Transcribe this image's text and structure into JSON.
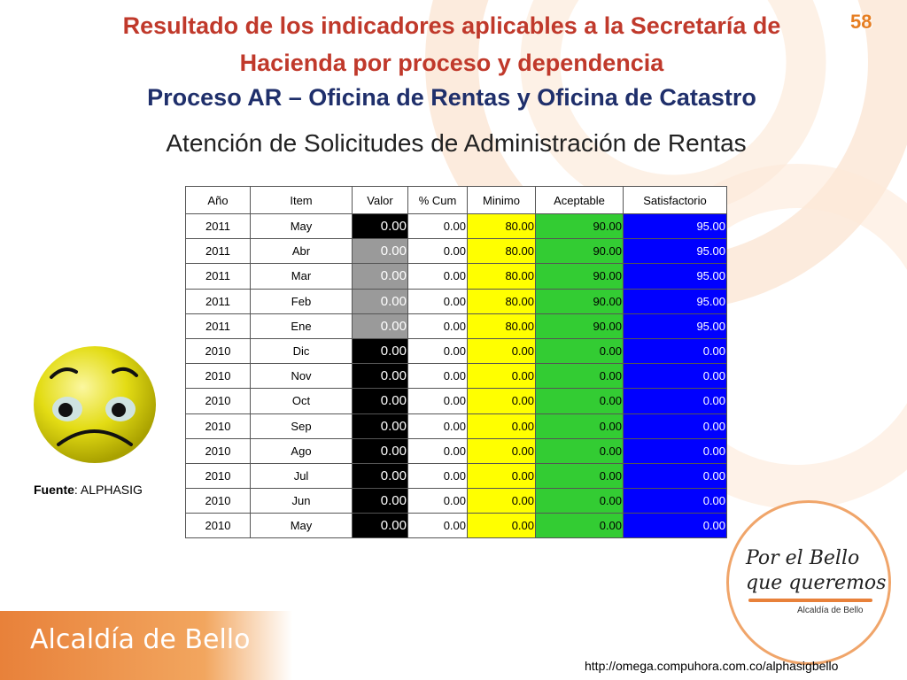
{
  "slide": {
    "title_line1": "Resultado de los indicadores aplicables a la Secretaría de",
    "title_line2": "Hacienda por proceso y dependencia",
    "title_line3": "Proceso AR – Oficina de Rentas y Oficina de Catastro",
    "subtitle": "Atención de Solicitudes de Administración de Rentas",
    "page_number": "58"
  },
  "table": {
    "headers": [
      "Año",
      "Item",
      "Valor",
      "% Cum",
      "Minimo",
      "Aceptable",
      "Satisfactorio"
    ],
    "rows": [
      {
        "anio": "2011",
        "item": "May",
        "valor": "0.00",
        "valor_color": "black",
        "cum": "0.00",
        "minimo": "80.00",
        "aceptable": "90.00",
        "satisfactorio": "95.00"
      },
      {
        "anio": "2011",
        "item": "Abr",
        "valor": "0.00",
        "valor_color": "gray",
        "cum": "0.00",
        "minimo": "80.00",
        "aceptable": "90.00",
        "satisfactorio": "95.00"
      },
      {
        "anio": "2011",
        "item": "Mar",
        "valor": "0.00",
        "valor_color": "gray",
        "cum": "0.00",
        "minimo": "80.00",
        "aceptable": "90.00",
        "satisfactorio": "95.00"
      },
      {
        "anio": "2011",
        "item": "Feb",
        "valor": "0.00",
        "valor_color": "gray",
        "cum": "0.00",
        "minimo": "80.00",
        "aceptable": "90.00",
        "satisfactorio": "95.00"
      },
      {
        "anio": "2011",
        "item": "Ene",
        "valor": "0.00",
        "valor_color": "gray",
        "cum": "0.00",
        "minimo": "80.00",
        "aceptable": "90.00",
        "satisfactorio": "95.00"
      },
      {
        "anio": "2010",
        "item": "Dic",
        "valor": "0.00",
        "valor_color": "black",
        "cum": "0.00",
        "minimo": "0.00",
        "aceptable": "0.00",
        "satisfactorio": "0.00"
      },
      {
        "anio": "2010",
        "item": "Nov",
        "valor": "0.00",
        "valor_color": "black",
        "cum": "0.00",
        "minimo": "0.00",
        "aceptable": "0.00",
        "satisfactorio": "0.00"
      },
      {
        "anio": "2010",
        "item": "Oct",
        "valor": "0.00",
        "valor_color": "black",
        "cum": "0.00",
        "minimo": "0.00",
        "aceptable": "0.00",
        "satisfactorio": "0.00"
      },
      {
        "anio": "2010",
        "item": "Sep",
        "valor": "0.00",
        "valor_color": "black",
        "cum": "0.00",
        "minimo": "0.00",
        "aceptable": "0.00",
        "satisfactorio": "0.00"
      },
      {
        "anio": "2010",
        "item": "Ago",
        "valor": "0.00",
        "valor_color": "black",
        "cum": "0.00",
        "minimo": "0.00",
        "aceptable": "0.00",
        "satisfactorio": "0.00"
      },
      {
        "anio": "2010",
        "item": "Jul",
        "valor": "0.00",
        "valor_color": "black",
        "cum": "0.00",
        "minimo": "0.00",
        "aceptable": "0.00",
        "satisfactorio": "0.00"
      },
      {
        "anio": "2010",
        "item": "Jun",
        "valor": "0.00",
        "valor_color": "black",
        "cum": "0.00",
        "minimo": "0.00",
        "aceptable": "0.00",
        "satisfactorio": "0.00"
      },
      {
        "anio": "2010",
        "item": "May",
        "valor": "0.00",
        "valor_color": "black",
        "cum": "0.00",
        "minimo": "0.00",
        "aceptable": "0.00",
        "satisfactorio": "0.00"
      }
    ]
  },
  "fuente": {
    "label": "Fuente",
    "value": ": ALPHASIG"
  },
  "footer": {
    "org_name": "Alcaldía de Bello",
    "url": "http://omega.compuhora.com.co/alphasigbello",
    "logo_line1": "Por el Bello",
    "logo_line2": "que queremos",
    "logo_sub": "Alcaldía de Bello"
  },
  "colors": {
    "title_red": "#c0392b",
    "title_blue": "#1f2f6b",
    "accent_orange": "#e8813a",
    "minimo": "#ffff00",
    "aceptable": "#33cc33",
    "satisfactorio": "#0000ff"
  }
}
